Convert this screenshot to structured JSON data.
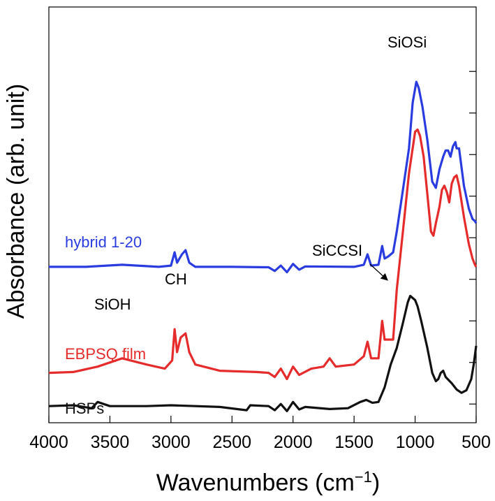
{
  "chart_data": {
    "type": "line",
    "title": "",
    "xlabel": "Wavenumbers (cm",
    "xlabel_sup": "−1",
    "xlabel_close": ")",
    "ylabel": "Absorbance (arb. unit)",
    "xlim": [
      4000,
      500
    ],
    "x_reversed": true,
    "ylim": [
      0,
      10
    ],
    "x_ticks": [
      4000,
      3500,
      3000,
      2500,
      2000,
      1500,
      1000,
      500
    ],
    "y_ticks_minor": [
      0.45,
      1.45,
      2.45,
      3.45,
      4.45,
      5.45,
      6.45,
      7.45,
      8.45
    ],
    "grid": false,
    "series": [
      {
        "name": "hybrid 1-20",
        "color": "#2a3ce0",
        "points": [
          [
            4000,
            3.75
          ],
          [
            3700,
            3.75
          ],
          [
            3400,
            3.8
          ],
          [
            3100,
            3.75
          ],
          [
            3000,
            3.78
          ],
          [
            2970,
            4.1
          ],
          [
            2950,
            3.85
          ],
          [
            2910,
            4.05
          ],
          [
            2880,
            4.15
          ],
          [
            2850,
            3.85
          ],
          [
            2800,
            3.75
          ],
          [
            2500,
            3.75
          ],
          [
            2200,
            3.74
          ],
          [
            2150,
            3.65
          ],
          [
            2100,
            3.78
          ],
          [
            2050,
            3.62
          ],
          [
            2000,
            3.82
          ],
          [
            1950,
            3.68
          ],
          [
            1900,
            3.76
          ],
          [
            1500,
            3.75
          ],
          [
            1420,
            3.8
          ],
          [
            1390,
            4.05
          ],
          [
            1360,
            3.78
          ],
          [
            1300,
            3.8
          ],
          [
            1270,
            4.25
          ],
          [
            1250,
            3.95
          ],
          [
            1220,
            4.0
          ],
          [
            1180,
            4.1
          ],
          [
            1150,
            4.6
          ],
          [
            1100,
            5.6
          ],
          [
            1050,
            6.6
          ],
          [
            1020,
            7.7
          ],
          [
            990,
            8.2
          ],
          [
            970,
            8.05
          ],
          [
            940,
            7.6
          ],
          [
            900,
            6.8
          ],
          [
            860,
            5.8
          ],
          [
            830,
            5.65
          ],
          [
            800,
            6.1
          ],
          [
            770,
            6.4
          ],
          [
            750,
            6.55
          ],
          [
            730,
            6.55
          ],
          [
            710,
            6.4
          ],
          [
            690,
            6.65
          ],
          [
            670,
            6.75
          ],
          [
            660,
            6.6
          ],
          [
            640,
            6.6
          ],
          [
            600,
            5.7
          ],
          [
            560,
            5.15
          ],
          [
            530,
            4.9
          ],
          [
            510,
            4.85
          ],
          [
            500,
            4.8
          ]
        ]
      },
      {
        "name": "EBPSQ film",
        "color": "#e52b2b",
        "points": [
          [
            4000,
            1.2
          ],
          [
            3800,
            1.22
          ],
          [
            3600,
            1.35
          ],
          [
            3400,
            1.55
          ],
          [
            3200,
            1.4
          ],
          [
            3050,
            1.3
          ],
          [
            2990,
            1.5
          ],
          [
            2970,
            2.25
          ],
          [
            2950,
            1.7
          ],
          [
            2920,
            2.05
          ],
          [
            2880,
            2.15
          ],
          [
            2850,
            1.7
          ],
          [
            2800,
            1.4
          ],
          [
            2600,
            1.25
          ],
          [
            2300,
            1.22
          ],
          [
            2200,
            1.2
          ],
          [
            2150,
            1.1
          ],
          [
            2100,
            1.3
          ],
          [
            2050,
            1.05
          ],
          [
            2000,
            1.35
          ],
          [
            1950,
            1.15
          ],
          [
            1850,
            1.3
          ],
          [
            1750,
            1.35
          ],
          [
            1700,
            1.55
          ],
          [
            1650,
            1.35
          ],
          [
            1500,
            1.4
          ],
          [
            1420,
            1.6
          ],
          [
            1390,
            1.95
          ],
          [
            1360,
            1.55
          ],
          [
            1300,
            1.55
          ],
          [
            1270,
            2.45
          ],
          [
            1250,
            2.0
          ],
          [
            1210,
            2.0
          ],
          [
            1180,
            2.0
          ],
          [
            1150,
            3.2
          ],
          [
            1100,
            4.6
          ],
          [
            1050,
            6.0
          ],
          [
            1000,
            7.0
          ],
          [
            980,
            7.05
          ],
          [
            960,
            6.9
          ],
          [
            930,
            6.4
          ],
          [
            900,
            5.5
          ],
          [
            870,
            4.6
          ],
          [
            850,
            4.5
          ],
          [
            830,
            4.8
          ],
          [
            800,
            5.2
          ],
          [
            780,
            5.6
          ],
          [
            760,
            5.7
          ],
          [
            740,
            5.55
          ],
          [
            720,
            5.3
          ],
          [
            700,
            5.75
          ],
          [
            680,
            5.9
          ],
          [
            660,
            5.95
          ],
          [
            640,
            5.7
          ],
          [
            600,
            4.95
          ],
          [
            560,
            4.3
          ],
          [
            530,
            3.95
          ],
          [
            510,
            3.8
          ],
          [
            500,
            3.75
          ]
        ]
      },
      {
        "name": "HSPs",
        "color": "#111111",
        "points": [
          [
            4000,
            0.4
          ],
          [
            3800,
            0.42
          ],
          [
            3650,
            0.35
          ],
          [
            3600,
            0.5
          ],
          [
            3500,
            0.4
          ],
          [
            3200,
            0.4
          ],
          [
            3000,
            0.42
          ],
          [
            2600,
            0.38
          ],
          [
            2380,
            0.3
          ],
          [
            2350,
            0.42
          ],
          [
            2200,
            0.4
          ],
          [
            2150,
            0.3
          ],
          [
            2100,
            0.45
          ],
          [
            2050,
            0.28
          ],
          [
            2000,
            0.5
          ],
          [
            1950,
            0.32
          ],
          [
            1900,
            0.38
          ],
          [
            1700,
            0.33
          ],
          [
            1550,
            0.35
          ],
          [
            1450,
            0.5
          ],
          [
            1400,
            0.55
          ],
          [
            1350,
            0.48
          ],
          [
            1300,
            0.5
          ],
          [
            1250,
            0.85
          ],
          [
            1200,
            1.4
          ],
          [
            1150,
            1.8
          ],
          [
            1100,
            2.4
          ],
          [
            1060,
            2.9
          ],
          [
            1040,
            3.05
          ],
          [
            1000,
            2.95
          ],
          [
            980,
            2.8
          ],
          [
            950,
            2.45
          ],
          [
            900,
            1.8
          ],
          [
            860,
            1.2
          ],
          [
            830,
            1.0
          ],
          [
            810,
            1.05
          ],
          [
            790,
            1.2
          ],
          [
            770,
            1.25
          ],
          [
            750,
            1.1
          ],
          [
            700,
            0.95
          ],
          [
            660,
            0.8
          ],
          [
            620,
            0.72
          ],
          [
            580,
            0.78
          ],
          [
            540,
            1.05
          ],
          [
            520,
            1.4
          ],
          [
            500,
            1.85
          ]
        ]
      }
    ],
    "annotations": [
      "SiOSi",
      "SiCCSI",
      "CH",
      "SiOH"
    ]
  }
}
